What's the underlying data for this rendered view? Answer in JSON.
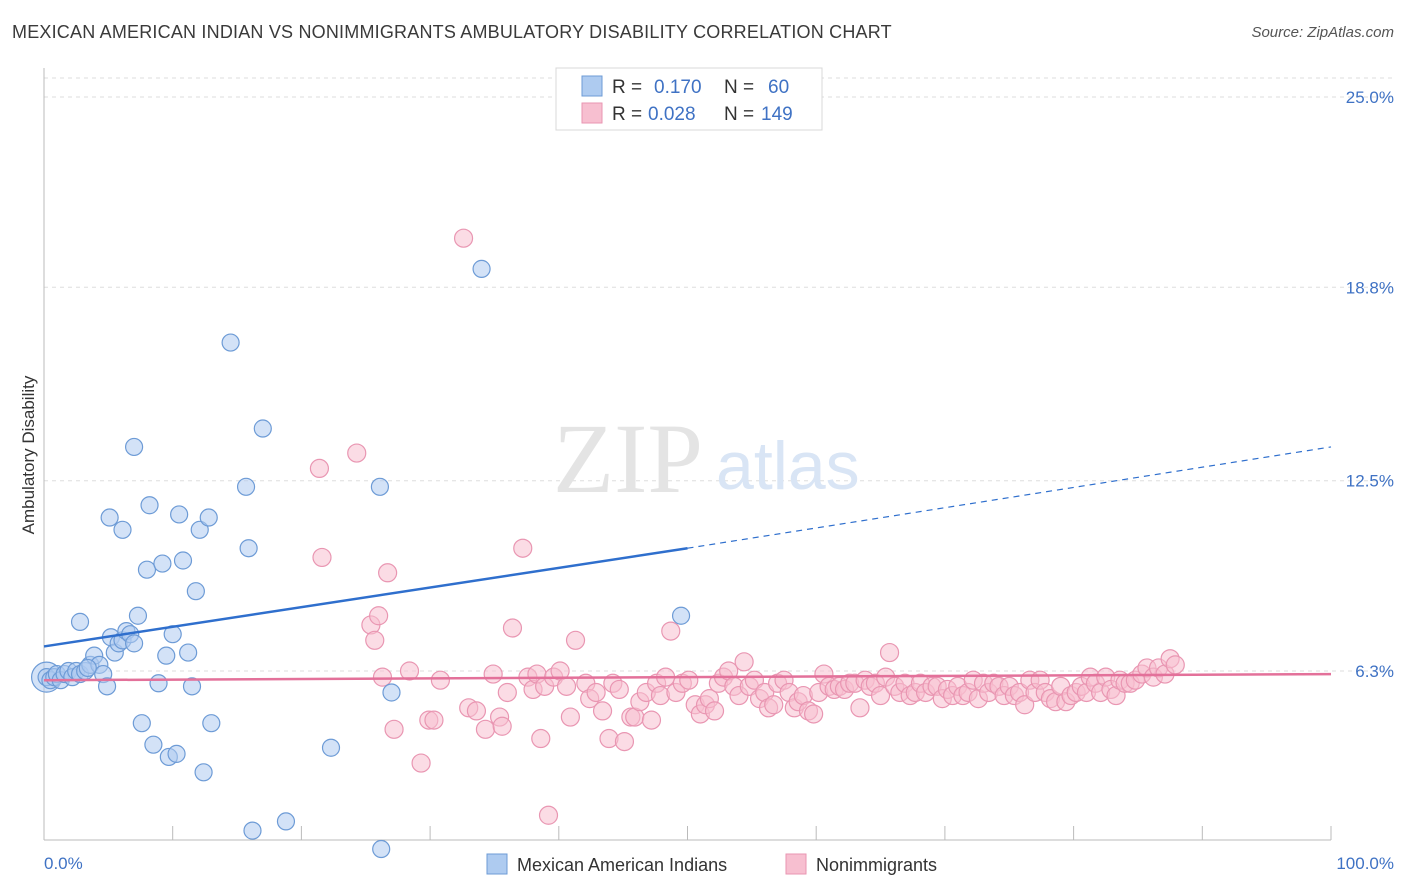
{
  "title": "MEXICAN AMERICAN INDIAN VS NONIMMIGRANTS AMBULATORY DISABILITY CORRELATION CHART",
  "source": "Source: ZipAtlas.com",
  "watermark": {
    "part1": "ZIP",
    "part2": "atlas"
  },
  "legend": {
    "rows": [
      {
        "r_label": "R =",
        "r_value": "0.170",
        "n_label": "N =",
        "n_value": "60"
      },
      {
        "r_label": "R =",
        "r_value": "0.028",
        "n_label": "N =",
        "n_value": "149"
      }
    ]
  },
  "bottom_legend": [
    "Mexican American Indians",
    "Nonimmigrants"
  ],
  "colors": {
    "blue_fill": "#aecbf0",
    "blue_stroke": "#6d9bd6",
    "blue_line": "#2f6fcd",
    "pink_fill": "#f7bfd0",
    "pink_stroke": "#e996b2",
    "pink_line": "#e3719a",
    "tick_text": "#3f72c4",
    "grid": "#dddddd"
  },
  "chart_data": {
    "type": "scatter",
    "title": "MEXICAN AMERICAN INDIAN VS NONIMMIGRANTS AMBULATORY DISABILITY CORRELATION CHART",
    "xlabel": "",
    "ylabel": "Ambulatory Disability",
    "xlim": [
      0,
      100
    ],
    "ylim": [
      0,
      25.6
    ],
    "x_tick_labels": [
      "0.0%",
      "100.0%"
    ],
    "y_ticks": [
      6.3,
      12.5,
      18.8,
      25.0
    ],
    "y_tick_labels": [
      "6.3%",
      "12.5%",
      "18.8%",
      "25.0%"
    ],
    "grid": true,
    "legend_position": "top-center",
    "series": [
      {
        "name": "Mexican American Indians",
        "r": 0.17,
        "n": 60,
        "trend": {
          "x": [
            0,
            50
          ],
          "y": [
            7.1,
            10.3
          ],
          "dashed_to": [
            100,
            13.6
          ]
        },
        "points": [
          [
            0.2,
            6.1
          ],
          [
            0.5,
            6.0
          ],
          [
            0.8,
            6.1
          ],
          [
            1.0,
            6.2
          ],
          [
            1.3,
            6.0
          ],
          [
            1.6,
            6.2
          ],
          [
            1.9,
            6.3
          ],
          [
            2.2,
            6.1
          ],
          [
            2.5,
            6.3
          ],
          [
            2.8,
            6.2
          ],
          [
            3.2,
            6.3
          ],
          [
            3.6,
            6.5
          ],
          [
            3.9,
            6.8
          ],
          [
            4.3,
            6.5
          ],
          [
            4.6,
            6.2
          ],
          [
            4.9,
            5.8
          ],
          [
            5.2,
            7.4
          ],
          [
            5.5,
            6.9
          ],
          [
            5.8,
            7.2
          ],
          [
            6.1,
            7.3
          ],
          [
            6.4,
            7.6
          ],
          [
            6.7,
            7.5
          ],
          [
            7.0,
            7.2
          ],
          [
            2.8,
            7.9
          ],
          [
            5.1,
            11.3
          ],
          [
            6.1,
            10.9
          ],
          [
            7.0,
            13.6
          ],
          [
            7.3,
            8.1
          ],
          [
            7.6,
            4.6
          ],
          [
            8.2,
            11.7
          ],
          [
            8.0,
            9.6
          ],
          [
            8.5,
            3.9
          ],
          [
            8.9,
            5.9
          ],
          [
            9.2,
            9.8
          ],
          [
            9.5,
            6.8
          ],
          [
            9.7,
            3.5
          ],
          [
            10.0,
            7.5
          ],
          [
            10.3,
            3.6
          ],
          [
            10.5,
            11.4
          ],
          [
            10.8,
            9.9
          ],
          [
            11.2,
            6.9
          ],
          [
            11.5,
            5.8
          ],
          [
            11.8,
            8.9
          ],
          [
            12.1,
            10.9
          ],
          [
            12.4,
            3.0
          ],
          [
            12.8,
            11.3
          ],
          [
            13.0,
            4.6
          ],
          [
            14.5,
            17.0
          ],
          [
            15.7,
            12.3
          ],
          [
            15.9,
            10.3
          ],
          [
            16.2,
            1.1
          ],
          [
            17.0,
            14.2
          ],
          [
            18.8,
            1.4
          ],
          [
            22.3,
            3.8
          ],
          [
            26.1,
            12.3
          ],
          [
            26.2,
            0.5
          ],
          [
            27.0,
            5.6
          ],
          [
            34.0,
            19.4
          ],
          [
            49.5,
            8.1
          ],
          [
            3.4,
            6.4
          ]
        ]
      },
      {
        "name": "Nonimmigrants",
        "r": 0.028,
        "n": 149,
        "trend": {
          "x": [
            0,
            100
          ],
          "y": [
            6.0,
            6.2
          ]
        },
        "points": [
          [
            21.4,
            12.9
          ],
          [
            21.6,
            10.0
          ],
          [
            24.3,
            13.4
          ],
          [
            25.4,
            7.8
          ],
          [
            25.7,
            7.3
          ],
          [
            26.0,
            8.1
          ],
          [
            26.3,
            6.1
          ],
          [
            26.7,
            9.5
          ],
          [
            27.2,
            4.4
          ],
          [
            28.4,
            6.3
          ],
          [
            29.3,
            3.3
          ],
          [
            29.9,
            4.7
          ],
          [
            30.3,
            4.7
          ],
          [
            30.8,
            6.0
          ],
          [
            32.6,
            20.4
          ],
          [
            33.0,
            5.1
          ],
          [
            33.6,
            5.0
          ],
          [
            34.3,
            4.4
          ],
          [
            34.9,
            6.2
          ],
          [
            35.4,
            4.8
          ],
          [
            35.6,
            4.5
          ],
          [
            36.0,
            5.6
          ],
          [
            36.4,
            7.7
          ],
          [
            37.2,
            10.3
          ],
          [
            37.6,
            6.1
          ],
          [
            38.0,
            5.7
          ],
          [
            38.3,
            6.2
          ],
          [
            38.6,
            4.1
          ],
          [
            38.9,
            5.8
          ],
          [
            39.2,
            1.6
          ],
          [
            39.6,
            6.1
          ],
          [
            40.1,
            6.3
          ],
          [
            40.6,
            5.8
          ],
          [
            40.9,
            4.8
          ],
          [
            41.3,
            7.3
          ],
          [
            42.1,
            5.9
          ],
          [
            42.4,
            5.4
          ],
          [
            42.9,
            5.6
          ],
          [
            43.4,
            5.0
          ],
          [
            43.9,
            4.1
          ],
          [
            44.2,
            5.9
          ],
          [
            44.7,
            5.7
          ],
          [
            45.1,
            4.0
          ],
          [
            45.6,
            4.8
          ],
          [
            45.9,
            4.8
          ],
          [
            46.3,
            5.3
          ],
          [
            46.8,
            5.6
          ],
          [
            47.2,
            4.7
          ],
          [
            47.6,
            5.9
          ],
          [
            47.9,
            5.5
          ],
          [
            48.3,
            6.1
          ],
          [
            48.7,
            7.6
          ],
          [
            49.1,
            5.6
          ],
          [
            49.6,
            5.9
          ],
          [
            50.1,
            6.0
          ],
          [
            50.6,
            5.2
          ],
          [
            51.0,
            4.9
          ],
          [
            51.4,
            5.2
          ],
          [
            51.7,
            5.4
          ],
          [
            52.1,
            5.0
          ],
          [
            52.4,
            5.9
          ],
          [
            52.8,
            6.1
          ],
          [
            53.2,
            6.3
          ],
          [
            53.6,
            5.8
          ],
          [
            54.0,
            5.5
          ],
          [
            54.4,
            6.6
          ],
          [
            54.8,
            5.8
          ],
          [
            55.2,
            6.0
          ],
          [
            55.6,
            5.4
          ],
          [
            56.0,
            5.6
          ],
          [
            56.3,
            5.1
          ],
          [
            56.7,
            5.2
          ],
          [
            57.0,
            5.9
          ],
          [
            57.5,
            6.0
          ],
          [
            57.9,
            5.6
          ],
          [
            58.3,
            5.1
          ],
          [
            58.6,
            5.3
          ],
          [
            59.0,
            5.5
          ],
          [
            59.4,
            5.0
          ],
          [
            59.8,
            4.9
          ],
          [
            60.2,
            5.6
          ],
          [
            60.6,
            6.2
          ],
          [
            61.0,
            5.8
          ],
          [
            61.4,
            5.7
          ],
          [
            61.8,
            5.8
          ],
          [
            62.2,
            5.7
          ],
          [
            62.6,
            5.9
          ],
          [
            63.0,
            5.9
          ],
          [
            63.4,
            5.1
          ],
          [
            63.8,
            6.0
          ],
          [
            64.2,
            5.8
          ],
          [
            64.6,
            5.9
          ],
          [
            65.0,
            5.5
          ],
          [
            65.4,
            6.1
          ],
          [
            65.7,
            6.9
          ],
          [
            66.1,
            5.8
          ],
          [
            66.5,
            5.6
          ],
          [
            66.9,
            5.9
          ],
          [
            67.3,
            5.5
          ],
          [
            67.7,
            5.6
          ],
          [
            68.1,
            5.9
          ],
          [
            68.5,
            5.6
          ],
          [
            69.0,
            5.8
          ],
          [
            69.4,
            5.8
          ],
          [
            69.8,
            5.4
          ],
          [
            70.2,
            5.7
          ],
          [
            70.6,
            5.5
          ],
          [
            71.0,
            5.8
          ],
          [
            71.4,
            5.5
          ],
          [
            71.8,
            5.6
          ],
          [
            72.2,
            6.0
          ],
          [
            72.6,
            5.4
          ],
          [
            73.0,
            5.9
          ],
          [
            73.4,
            5.6
          ],
          [
            73.8,
            5.9
          ],
          [
            74.2,
            5.8
          ],
          [
            74.6,
            5.5
          ],
          [
            75.0,
            5.8
          ],
          [
            75.4,
            5.5
          ],
          [
            75.8,
            5.6
          ],
          [
            76.2,
            5.2
          ],
          [
            76.6,
            6.0
          ],
          [
            77.0,
            5.6
          ],
          [
            77.4,
            6.0
          ],
          [
            77.8,
            5.6
          ],
          [
            78.2,
            5.4
          ],
          [
            78.6,
            5.3
          ],
          [
            79.0,
            5.8
          ],
          [
            79.4,
            5.3
          ],
          [
            79.8,
            5.5
          ],
          [
            80.2,
            5.6
          ],
          [
            80.6,
            5.8
          ],
          [
            81.0,
            5.6
          ],
          [
            81.3,
            6.1
          ],
          [
            81.7,
            5.9
          ],
          [
            82.1,
            5.6
          ],
          [
            82.5,
            6.1
          ],
          [
            82.9,
            5.7
          ],
          [
            83.3,
            5.5
          ],
          [
            83.6,
            6.0
          ],
          [
            84.0,
            5.9
          ],
          [
            84.4,
            5.9
          ],
          [
            84.8,
            6.0
          ],
          [
            85.3,
            6.2
          ],
          [
            85.7,
            6.4
          ],
          [
            86.2,
            6.1
          ],
          [
            86.6,
            6.4
          ],
          [
            87.1,
            6.2
          ],
          [
            87.5,
            6.7
          ],
          [
            87.9,
            6.5
          ]
        ]
      }
    ]
  }
}
